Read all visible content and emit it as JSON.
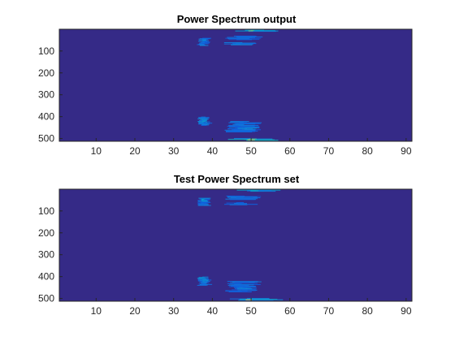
{
  "chart_data": [
    {
      "type": "heatmap",
      "title": "Power Spectrum output",
      "xlabel": "",
      "ylabel": "",
      "xlim": [
        0.5,
        91.5
      ],
      "ylim": [
        0.5,
        512.5
      ],
      "y_reversed": true,
      "x_ticks": [
        10,
        20,
        30,
        40,
        50,
        60,
        70,
        80,
        90
      ],
      "y_ticks": [
        100,
        200,
        300,
        400,
        500
      ],
      "colormap": "parula",
      "background_color": "#352A87",
      "grid": false,
      "hot_spots": [
        {
          "x": [
            45,
            58
          ],
          "y": [
            3,
            10
          ],
          "intensity": 0.55
        },
        {
          "x": [
            49,
            52
          ],
          "y": [
            4,
            8
          ],
          "intensity": 0.9
        },
        {
          "x": [
            36,
            40
          ],
          "y": [
            40,
            75
          ],
          "intensity": 0.35
        },
        {
          "x": [
            37,
            39
          ],
          "y": [
            45,
            55
          ],
          "intensity": 0.55
        },
        {
          "x": [
            43,
            53
          ],
          "y": [
            30,
            48
          ],
          "intensity": 0.3
        },
        {
          "x": [
            43,
            52
          ],
          "y": [
            60,
            72
          ],
          "intensity": 0.35
        },
        {
          "x": [
            36,
            40
          ],
          "y": [
            400,
            440
          ],
          "intensity": 0.4
        },
        {
          "x": [
            37,
            39
          ],
          "y": [
            412,
            425
          ],
          "intensity": 0.55
        },
        {
          "x": [
            43,
            53
          ],
          "y": [
            420,
            470
          ],
          "intensity": 0.3
        },
        {
          "x": [
            46,
            52
          ],
          "y": [
            448,
            462
          ],
          "intensity": 0.45
        },
        {
          "x": [
            44,
            59
          ],
          "y": [
            498,
            508
          ],
          "intensity": 0.6
        },
        {
          "x": [
            48,
            52
          ],
          "y": [
            500,
            506
          ],
          "intensity": 0.95
        }
      ]
    },
    {
      "type": "heatmap",
      "title": "Test Power Spectrum set",
      "xlabel": "",
      "ylabel": "",
      "xlim": [
        0.5,
        91.5
      ],
      "ylim": [
        0.5,
        512.5
      ],
      "y_reversed": true,
      "x_ticks": [
        10,
        20,
        30,
        40,
        50,
        60,
        70,
        80,
        90
      ],
      "y_ticks": [
        100,
        200,
        300,
        400,
        500
      ],
      "colormap": "parula",
      "background_color": "#352A87",
      "grid": false,
      "hot_spots": [
        {
          "x": [
            45,
            58
          ],
          "y": [
            3,
            10
          ],
          "intensity": 0.55
        },
        {
          "x": [
            49,
            52
          ],
          "y": [
            4,
            8
          ],
          "intensity": 0.9
        },
        {
          "x": [
            36,
            40
          ],
          "y": [
            40,
            75
          ],
          "intensity": 0.35
        },
        {
          "x": [
            37,
            39
          ],
          "y": [
            45,
            55
          ],
          "intensity": 0.55
        },
        {
          "x": [
            43,
            53
          ],
          "y": [
            30,
            48
          ],
          "intensity": 0.3
        },
        {
          "x": [
            43,
            52
          ],
          "y": [
            60,
            72
          ],
          "intensity": 0.35
        },
        {
          "x": [
            36,
            40
          ],
          "y": [
            400,
            440
          ],
          "intensity": 0.4
        },
        {
          "x": [
            37,
            39
          ],
          "y": [
            412,
            425
          ],
          "intensity": 0.55
        },
        {
          "x": [
            43,
            53
          ],
          "y": [
            420,
            470
          ],
          "intensity": 0.3
        },
        {
          "x": [
            46,
            52
          ],
          "y": [
            448,
            462
          ],
          "intensity": 0.45
        },
        {
          "x": [
            44,
            59
          ],
          "y": [
            498,
            508
          ],
          "intensity": 0.6
        },
        {
          "x": [
            48,
            52
          ],
          "y": [
            500,
            506
          ],
          "intensity": 0.95
        }
      ]
    }
  ]
}
